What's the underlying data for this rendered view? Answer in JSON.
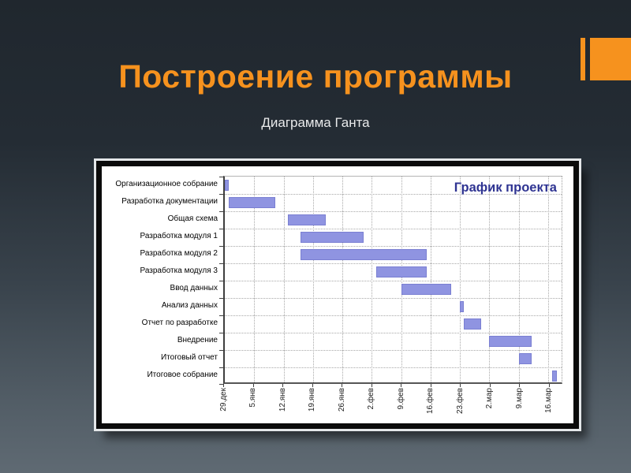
{
  "slide": {
    "title": "Построение программы",
    "subtitle": "Диаграмма Ганта",
    "accent_color": "#F6921E",
    "background_top": "#20272E",
    "background_bottom": "#5F6A73"
  },
  "chart_data": {
    "type": "gantt",
    "title": "График проекта",
    "title_color": "#2F3492",
    "bar_color": "#8F94E1",
    "grid": "dotted",
    "axis_max_days": 80.2,
    "x_ticks": [
      {
        "label": "29.дек",
        "day": 0
      },
      {
        "label": "5.янв",
        "day": 7
      },
      {
        "label": "12.янв",
        "day": 14
      },
      {
        "label": "19.янв",
        "day": 21
      },
      {
        "label": "26.янв",
        "day": 28
      },
      {
        "label": "2.фев",
        "day": 35
      },
      {
        "label": "9.фев",
        "day": 42
      },
      {
        "label": "16.фев",
        "day": 49
      },
      {
        "label": "23.фев",
        "day": 56
      },
      {
        "label": "2.мар",
        "day": 63
      },
      {
        "label": "9.мар",
        "day": 70
      },
      {
        "label": "16.мар",
        "day": 77
      }
    ],
    "tasks": [
      {
        "label": "Организационное собрание",
        "start_day": 0,
        "end_day": 1
      },
      {
        "label": "Разработка документации",
        "start_day": 1,
        "end_day": 12
      },
      {
        "label": "Общая схема",
        "start_day": 15,
        "end_day": 24
      },
      {
        "label": "Разработка модуля 1",
        "start_day": 18,
        "end_day": 33
      },
      {
        "label": "Разработка модуля 2",
        "start_day": 18,
        "end_day": 48
      },
      {
        "label": "Разработка модуля 3",
        "start_day": 36,
        "end_day": 48
      },
      {
        "label": "Ввод данных",
        "start_day": 42,
        "end_day": 54
      },
      {
        "label": "Анализ данных",
        "start_day": 56,
        "end_day": 57
      },
      {
        "label": "Отчет по разработке",
        "start_day": 57,
        "end_day": 61
      },
      {
        "label": "Внедрение",
        "start_day": 63,
        "end_day": 73
      },
      {
        "label": "Итоговый отчет",
        "start_day": 70,
        "end_day": 73
      },
      {
        "label": "Итоговое собрание",
        "start_day": 78,
        "end_day": 79
      }
    ]
  }
}
